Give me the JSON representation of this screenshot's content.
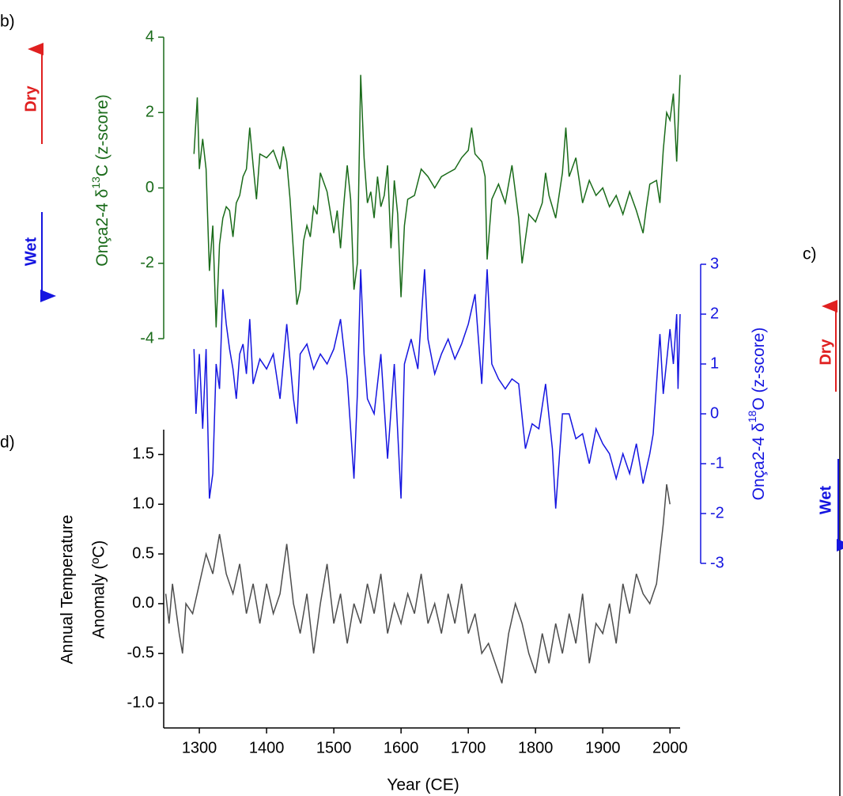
{
  "chart_data": [
    {
      "type": "line",
      "panel_label": "b)",
      "annotations": [
        "Dry",
        "Wet"
      ],
      "ylabel": [
        "Onça2-4 δ",
        "13",
        "C (z-score)"
      ],
      "color": "#1a6b1a",
      "xlim": [
        1247,
        2015
      ],
      "ylim": [
        -4,
        4
      ],
      "yticks": [
        -4,
        -2,
        0,
        2,
        4
      ],
      "x": [
        1292,
        1297,
        1300,
        1305,
        1310,
        1315,
        1320,
        1325,
        1330,
        1335,
        1340,
        1345,
        1350,
        1355,
        1360,
        1365,
        1370,
        1375,
        1380,
        1385,
        1390,
        1400,
        1410,
        1420,
        1425,
        1430,
        1435,
        1440,
        1445,
        1450,
        1455,
        1460,
        1465,
        1470,
        1475,
        1480,
        1490,
        1500,
        1505,
        1510,
        1515,
        1520,
        1525,
        1530,
        1535,
        1540,
        1545,
        1550,
        1555,
        1560,
        1565,
        1570,
        1575,
        1580,
        1585,
        1590,
        1595,
        1600,
        1605,
        1610,
        1620,
        1630,
        1640,
        1650,
        1660,
        1670,
        1680,
        1690,
        1700,
        1705,
        1710,
        1720,
        1725,
        1728,
        1735,
        1745,
        1755,
        1765,
        1775,
        1780,
        1790,
        1800,
        1810,
        1815,
        1820,
        1830,
        1840,
        1845,
        1850,
        1860,
        1870,
        1880,
        1890,
        1900,
        1910,
        1920,
        1930,
        1940,
        1950,
        1960,
        1965,
        1970,
        1980,
        1985,
        1990,
        1995,
        2000,
        2005,
        2010,
        2015
      ],
      "values": [
        0.9,
        2.4,
        0.5,
        1.3,
        0.5,
        -2.2,
        -1.0,
        -3.7,
        -1.5,
        -0.8,
        -0.5,
        -0.6,
        -1.3,
        -0.4,
        -0.2,
        0.3,
        0.5,
        1.6,
        0.6,
        -0.3,
        0.9,
        0.8,
        1.0,
        0.5,
        1.1,
        0.7,
        -0.3,
        -1.7,
        -3.1,
        -2.7,
        -1.4,
        -1.0,
        -1.3,
        -0.5,
        -0.7,
        0.4,
        -0.1,
        -1.2,
        -0.6,
        -1.6,
        -0.4,
        0.6,
        -0.3,
        -2.7,
        -2.0,
        3.0,
        0.8,
        -0.4,
        -0.1,
        -0.8,
        0.3,
        -0.5,
        -0.2,
        0.6,
        -1.6,
        0.2,
        -0.7,
        -2.9,
        -1.0,
        -0.3,
        -0.2,
        0.5,
        0.3,
        0.0,
        0.3,
        0.4,
        0.5,
        0.8,
        1.0,
        1.6,
        0.9,
        0.7,
        0.3,
        -1.9,
        -0.3,
        0.1,
        -0.4,
        0.6,
        -0.8,
        -2.0,
        -0.7,
        -0.9,
        -0.4,
        0.4,
        -0.2,
        -0.8,
        0.4,
        1.6,
        0.3,
        0.8,
        -0.4,
        0.2,
        -0.2,
        0.0,
        -0.5,
        -0.2,
        -0.7,
        -0.1,
        -0.6,
        -1.2,
        -0.5,
        0.1,
        0.2,
        -0.4,
        1.0,
        2.0,
        1.8,
        2.5,
        0.7,
        3.0
      ]
    },
    {
      "type": "line",
      "panel_label": "c)",
      "annotations": [
        "Dry",
        "Wet"
      ],
      "ylabel": [
        "Onça2-4 δ",
        "18",
        "O (z-score)"
      ],
      "color": "#1515e0",
      "xlim": [
        1247,
        2015
      ],
      "ylim": [
        -3,
        3
      ],
      "yticks": [
        -3,
        -2,
        -1,
        0,
        1,
        2,
        3
      ],
      "x": [
        1292,
        1295,
        1300,
        1305,
        1310,
        1315,
        1320,
        1325,
        1330,
        1335,
        1340,
        1345,
        1350,
        1355,
        1360,
        1365,
        1370,
        1375,
        1380,
        1390,
        1400,
        1410,
        1420,
        1430,
        1440,
        1445,
        1450,
        1460,
        1470,
        1480,
        1490,
        1500,
        1510,
        1520,
        1530,
        1535,
        1540,
        1545,
        1550,
        1560,
        1570,
        1580,
        1590,
        1600,
        1605,
        1615,
        1625,
        1635,
        1640,
        1650,
        1660,
        1670,
        1680,
        1690,
        1700,
        1710,
        1720,
        1728,
        1735,
        1745,
        1755,
        1765,
        1775,
        1785,
        1795,
        1805,
        1815,
        1825,
        1830,
        1840,
        1850,
        1860,
        1870,
        1880,
        1890,
        1900,
        1910,
        1920,
        1930,
        1940,
        1950,
        1960,
        1970,
        1975,
        1980,
        1985,
        1990,
        2000,
        2005,
        2010,
        2012,
        2015
      ],
      "values": [
        1.3,
        0.0,
        1.2,
        -0.3,
        1.3,
        -1.7,
        -1.2,
        1.0,
        0.5,
        2.5,
        1.8,
        1.3,
        0.9,
        0.3,
        1.2,
        1.4,
        0.8,
        1.9,
        0.6,
        1.1,
        0.9,
        1.2,
        0.3,
        1.8,
        0.3,
        -0.2,
        1.2,
        1.4,
        0.9,
        1.2,
        1.0,
        1.3,
        1.9,
        0.7,
        -1.3,
        0.4,
        2.9,
        1.2,
        0.3,
        0.0,
        1.2,
        -0.9,
        1.0,
        -1.7,
        1.0,
        1.5,
        0.9,
        2.9,
        1.5,
        0.8,
        1.2,
        1.5,
        1.1,
        1.4,
        1.8,
        2.4,
        0.6,
        2.9,
        1.0,
        0.7,
        0.5,
        0.7,
        0.6,
        -0.7,
        -0.2,
        -0.3,
        0.6,
        -0.7,
        -1.9,
        0.0,
        0.0,
        -0.5,
        -0.4,
        -1.0,
        -0.3,
        -0.6,
        -0.8,
        -1.3,
        -0.8,
        -1.2,
        -0.6,
        -1.4,
        -0.8,
        -0.4,
        0.6,
        1.6,
        0.4,
        1.7,
        1.0,
        2.0,
        0.5,
        2.0
      ]
    },
    {
      "type": "line",
      "panel_label": "d)",
      "ylabel": [
        "Annual Temperature",
        "Anomaly (ºC)"
      ],
      "xlabel": "Year (CE)",
      "color": "#4d4d4d",
      "xlim": [
        1247,
        2015
      ],
      "xticks": [
        1300,
        1400,
        1500,
        1600,
        1700,
        1800,
        1900,
        2000
      ],
      "ylim": [
        -1.25,
        1.75
      ],
      "yticks": [
        {
          "value": -1.0,
          "label": "-1.0"
        },
        -0.5,
        {
          "value": 0.0,
          "label": "0.0"
        },
        0.5,
        {
          "value": 1.0,
          "label": "1.0"
        },
        1.5
      ],
      "x": [
        1250,
        1255,
        1260,
        1270,
        1275,
        1280,
        1290,
        1300,
        1310,
        1320,
        1330,
        1340,
        1350,
        1360,
        1370,
        1380,
        1390,
        1400,
        1410,
        1420,
        1430,
        1440,
        1450,
        1460,
        1470,
        1480,
        1490,
        1500,
        1510,
        1520,
        1530,
        1540,
        1550,
        1560,
        1570,
        1580,
        1590,
        1600,
        1610,
        1620,
        1630,
        1640,
        1650,
        1660,
        1670,
        1680,
        1690,
        1700,
        1710,
        1720,
        1730,
        1740,
        1750,
        1760,
        1770,
        1780,
        1790,
        1800,
        1810,
        1820,
        1830,
        1840,
        1850,
        1860,
        1870,
        1880,
        1890,
        1900,
        1910,
        1920,
        1930,
        1940,
        1950,
        1960,
        1970,
        1980,
        1985,
        1990,
        1995,
        2000
      ],
      "values": [
        0.1,
        -0.2,
        0.2,
        -0.3,
        -0.5,
        0.0,
        -0.1,
        0.2,
        0.5,
        0.3,
        0.7,
        0.3,
        0.1,
        0.4,
        -0.1,
        0.2,
        -0.2,
        0.2,
        -0.1,
        0.1,
        0.6,
        0.0,
        -0.3,
        0.1,
        -0.5,
        0.0,
        0.4,
        -0.2,
        0.1,
        -0.4,
        0.0,
        -0.2,
        0.2,
        -0.1,
        0.3,
        -0.3,
        0.0,
        -0.2,
        0.1,
        -0.1,
        0.3,
        -0.2,
        0.0,
        -0.3,
        0.1,
        -0.2,
        0.2,
        -0.3,
        -0.1,
        -0.5,
        -0.4,
        -0.6,
        -0.8,
        -0.3,
        0.0,
        -0.2,
        -0.5,
        -0.7,
        -0.3,
        -0.6,
        -0.2,
        -0.5,
        -0.1,
        -0.4,
        0.1,
        -0.6,
        -0.2,
        -0.3,
        0.0,
        -0.4,
        0.2,
        -0.1,
        0.3,
        0.1,
        0.0,
        0.2,
        0.5,
        0.8,
        1.2,
        1.0
      ]
    }
  ]
}
